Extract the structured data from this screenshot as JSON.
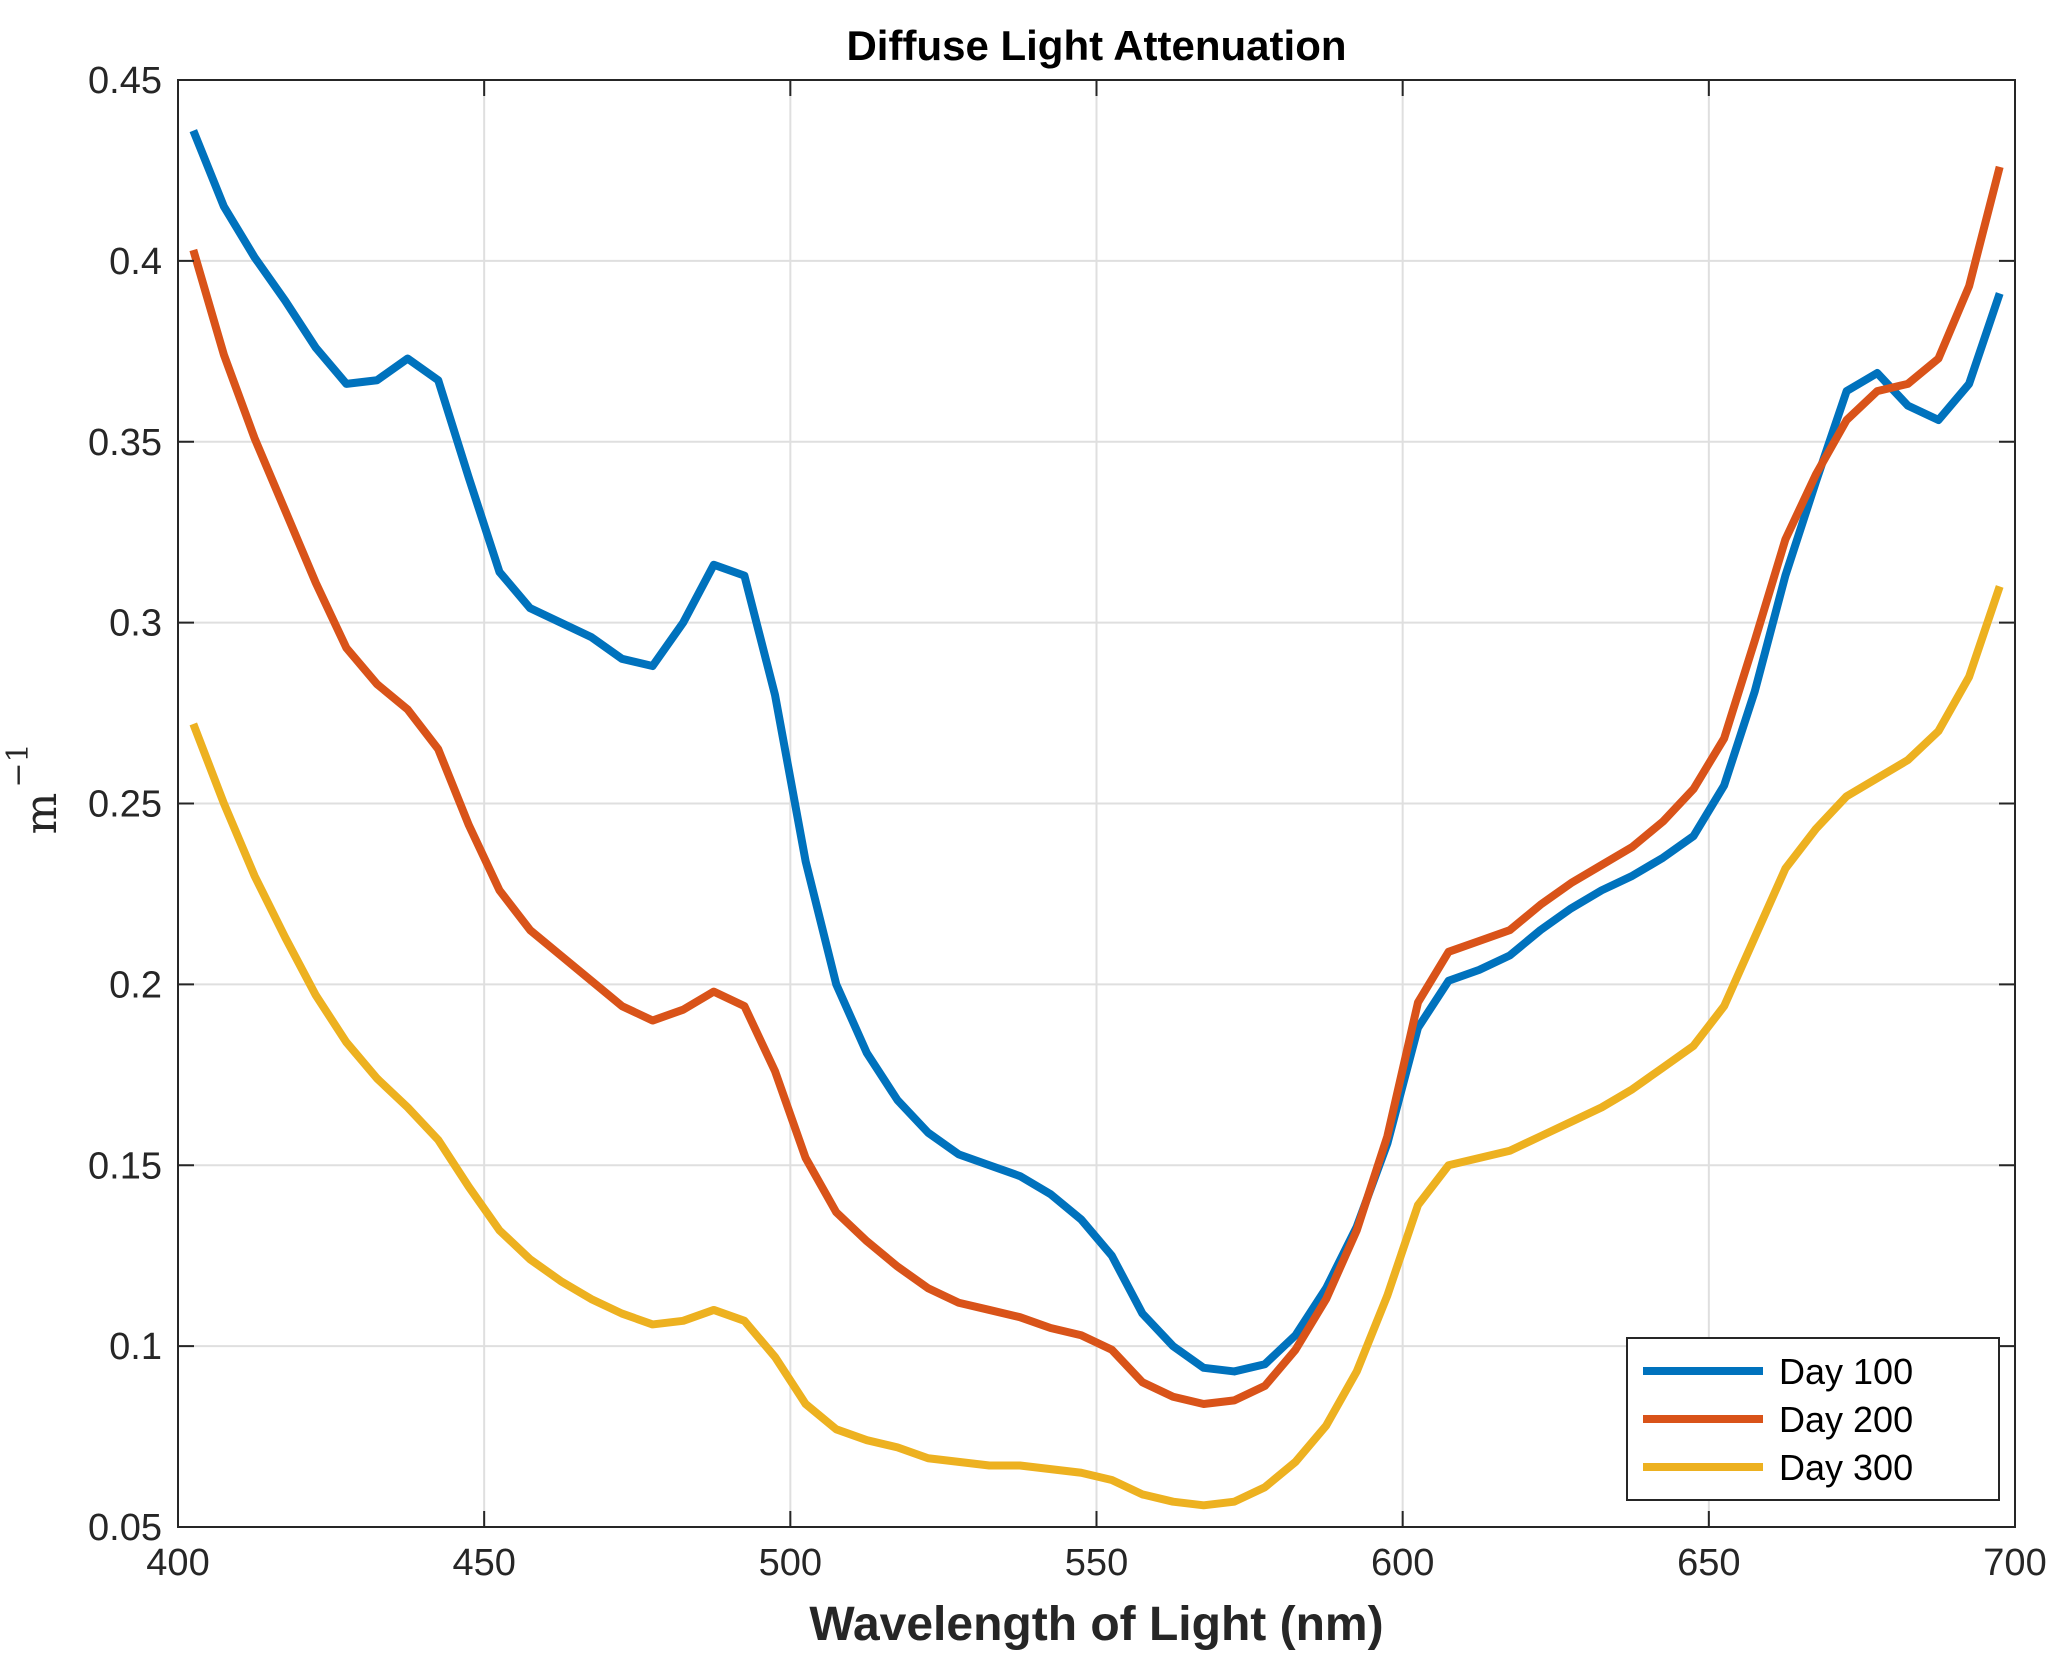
{
  "chart_data": {
    "type": "line",
    "title": "Diffuse Light Attenuation",
    "xlabel": "Wavelength of Light (nm)",
    "ylabel": "m",
    "ylabel_exponent": "−1",
    "xlim": [
      400,
      700
    ],
    "ylim": [
      0.05,
      0.45
    ],
    "xticks": [
      400,
      450,
      500,
      550,
      600,
      650,
      700
    ],
    "xtick_labels": [
      "400",
      "450",
      "500",
      "550",
      "600",
      "650",
      "700"
    ],
    "yticks": [
      0.05,
      0.1,
      0.15,
      0.2,
      0.25,
      0.3,
      0.35,
      0.4,
      0.45
    ],
    "ytick_labels": [
      "0.05",
      "0.1",
      "0.15",
      "0.2",
      "0.25",
      "0.3",
      "0.35",
      "0.4",
      "0.45"
    ],
    "grid": true,
    "legend_position": "bottom-right",
    "x": [
      402.5,
      407.5,
      412.5,
      417.5,
      422.5,
      427.5,
      432.5,
      437.5,
      442.5,
      447.5,
      452.5,
      457.5,
      462.5,
      467.5,
      472.5,
      477.5,
      482.5,
      487.5,
      492.5,
      497.5,
      502.5,
      507.5,
      512.5,
      517.5,
      522.5,
      527.5,
      532.5,
      537.5,
      542.5,
      547.5,
      552.5,
      557.5,
      562.5,
      567.5,
      572.5,
      577.5,
      582.5,
      587.5,
      592.5,
      597.5,
      602.5,
      607.5,
      612.5,
      617.5,
      622.5,
      627.5,
      632.5,
      637.5,
      642.5,
      647.5,
      652.5,
      657.5,
      662.5,
      667.5,
      672.5,
      677.5,
      682.5,
      687.5,
      692.5,
      697.5
    ],
    "series": [
      {
        "name": "Day 100",
        "color": "#0072BD",
        "values": [
          0.436,
          0.415,
          0.401,
          0.389,
          0.376,
          0.366,
          0.367,
          0.373,
          0.367,
          0.34,
          0.314,
          0.304,
          0.3,
          0.296,
          0.29,
          0.288,
          0.3,
          0.316,
          0.313,
          0.28,
          0.234,
          0.2,
          0.181,
          0.168,
          0.159,
          0.153,
          0.15,
          0.147,
          0.142,
          0.135,
          0.125,
          0.109,
          0.1,
          0.094,
          0.093,
          0.095,
          0.103,
          0.116,
          0.133,
          0.156,
          0.188,
          0.201,
          0.204,
          0.208,
          0.215,
          0.221,
          0.226,
          0.23,
          0.235,
          0.241,
          0.255,
          0.281,
          0.313,
          0.339,
          0.364,
          0.369,
          0.36,
          0.356,
          0.366,
          0.391
        ]
      },
      {
        "name": "Day 200",
        "color": "#D95319",
        "values": [
          0.403,
          0.374,
          0.351,
          0.331,
          0.311,
          0.293,
          0.283,
          0.276,
          0.265,
          0.244,
          0.226,
          0.215,
          0.208,
          0.201,
          0.194,
          0.19,
          0.193,
          0.198,
          0.194,
          0.176,
          0.152,
          0.137,
          0.129,
          0.122,
          0.116,
          0.112,
          0.11,
          0.108,
          0.105,
          0.103,
          0.099,
          0.09,
          0.086,
          0.084,
          0.085,
          0.089,
          0.099,
          0.113,
          0.132,
          0.158,
          0.195,
          0.209,
          0.212,
          0.215,
          0.222,
          0.228,
          0.233,
          0.238,
          0.245,
          0.254,
          0.268,
          0.295,
          0.323,
          0.341,
          0.356,
          0.364,
          0.366,
          0.373,
          0.393,
          0.426
        ]
      },
      {
        "name": "Day 300",
        "color": "#EDB120",
        "values": [
          0.272,
          0.25,
          0.23,
          0.213,
          0.197,
          0.184,
          0.174,
          0.166,
          0.157,
          0.144,
          0.132,
          0.124,
          0.118,
          0.113,
          0.109,
          0.106,
          0.107,
          0.11,
          0.107,
          0.097,
          0.084,
          0.077,
          0.074,
          0.072,
          0.069,
          0.068,
          0.067,
          0.067,
          0.066,
          0.065,
          0.063,
          0.059,
          0.057,
          0.056,
          0.057,
          0.061,
          0.068,
          0.078,
          0.093,
          0.114,
          0.139,
          0.15,
          0.152,
          0.154,
          0.158,
          0.162,
          0.166,
          0.171,
          0.177,
          0.183,
          0.194,
          0.213,
          0.232,
          0.243,
          0.252,
          0.257,
          0.262,
          0.27,
          0.285,
          0.31
        ]
      }
    ]
  }
}
